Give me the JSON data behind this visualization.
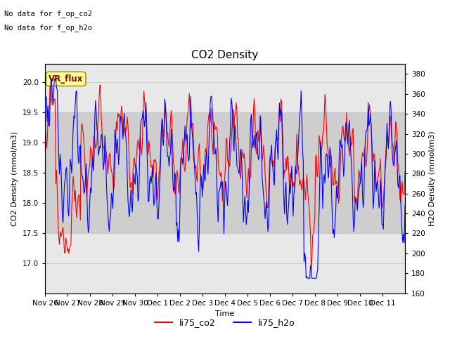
{
  "title": "CO2 Density",
  "xlabel": "Time",
  "ylabel_left": "CO2 Density (mmol/m3)",
  "ylabel_right": "H2O Density (mmol/m3)",
  "annotation_line1": "No data for f_op_co2",
  "annotation_line2": "No data for f_op_h2o",
  "legend_box_label": "VR_flux",
  "legend_entries": [
    "li75_co2",
    "li75_h2o"
  ],
  "co2_color": "red",
  "h2o_color": "blue",
  "ylim_left": [
    16.5,
    20.3
  ],
  "ylim_right": [
    160,
    390
  ],
  "yticks_left": [
    17.0,
    17.5,
    18.0,
    18.5,
    19.0,
    19.5,
    20.0
  ],
  "yticks_right": [
    160,
    180,
    200,
    220,
    240,
    260,
    280,
    300,
    320,
    340,
    360,
    380
  ],
  "grid_color": "#cccccc",
  "bg_color": "#e8e8e8",
  "band_low": 17.5,
  "band_high": 19.5,
  "band_color": "#c8c8c8",
  "n_points": 500,
  "seed": 99
}
